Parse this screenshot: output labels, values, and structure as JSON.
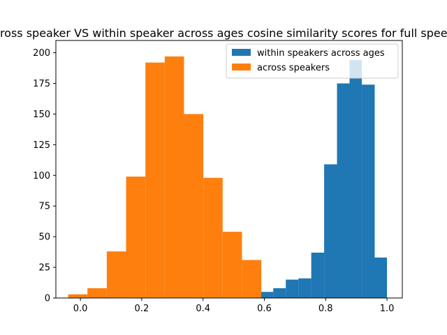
{
  "chart_data": {
    "type": "bar",
    "title": "Across speaker VS within speaker across ages cosine similarity scores for full speech",
    "xlabel": "",
    "ylabel": "",
    "xlim": [
      -0.08,
      1.05
    ],
    "ylim": [
      0,
      210
    ],
    "x_ticks": [
      0.0,
      0.2,
      0.4,
      0.6,
      0.8,
      1.0
    ],
    "x_tick_labels": [
      "0.0",
      "0.2",
      "0.4",
      "0.6",
      "0.8",
      "1.0"
    ],
    "y_ticks": [
      0,
      25,
      50,
      75,
      100,
      125,
      150,
      175,
      200
    ],
    "y_tick_labels": [
      "0",
      "25",
      "50",
      "75",
      "100",
      "125",
      "150",
      "175",
      "200"
    ],
    "grid": false,
    "legend_position": "top-right",
    "series": [
      {
        "name": "within speakers across ages",
        "color": "#1f77b4",
        "bins": [
          {
            "x0": 0.588,
            "x1": 0.629,
            "value": 5
          },
          {
            "x0": 0.629,
            "x1": 0.67,
            "value": 8
          },
          {
            "x0": 0.67,
            "x1": 0.711,
            "value": 15
          },
          {
            "x0": 0.711,
            "x1": 0.753,
            "value": 16
          },
          {
            "x0": 0.753,
            "x1": 0.795,
            "value": 37
          },
          {
            "x0": 0.795,
            "x1": 0.837,
            "value": 109
          },
          {
            "x0": 0.837,
            "x1": 0.878,
            "value": 175
          },
          {
            "x0": 0.878,
            "x1": 0.918,
            "value": 194
          },
          {
            "x0": 0.918,
            "x1": 0.96,
            "value": 174
          },
          {
            "x0": 0.96,
            "x1": 1.0,
            "value": 33
          }
        ]
      },
      {
        "name": "across speakers",
        "color": "#ff7f0e",
        "bins": [
          {
            "x0": -0.04,
            "x1": 0.023,
            "value": 3
          },
          {
            "x0": 0.023,
            "x1": 0.086,
            "value": 8
          },
          {
            "x0": 0.086,
            "x1": 0.149,
            "value": 38
          },
          {
            "x0": 0.149,
            "x1": 0.212,
            "value": 99
          },
          {
            "x0": 0.212,
            "x1": 0.275,
            "value": 192
          },
          {
            "x0": 0.275,
            "x1": 0.338,
            "value": 197
          },
          {
            "x0": 0.338,
            "x1": 0.401,
            "value": 150
          },
          {
            "x0": 0.401,
            "x1": 0.464,
            "value": 98
          },
          {
            "x0": 0.464,
            "x1": 0.527,
            "value": 54
          },
          {
            "x0": 0.527,
            "x1": 0.59,
            "value": 31
          }
        ]
      }
    ]
  }
}
